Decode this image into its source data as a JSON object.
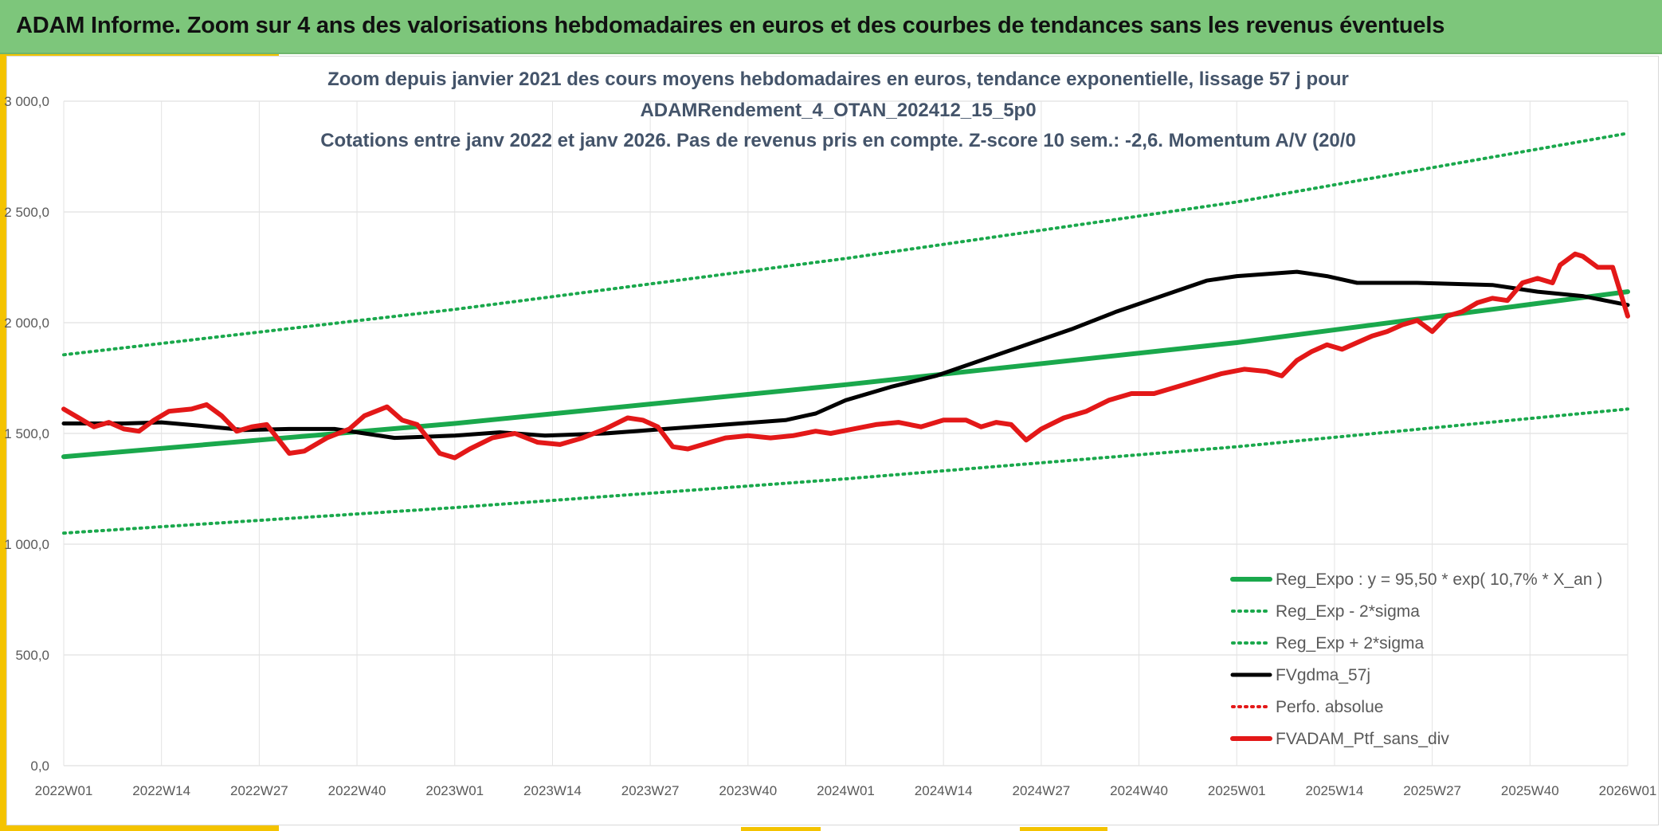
{
  "banner": {
    "title": "ADAM Informe. Zoom sur 4 ans des valorisations hebdomadaires en euros et des courbes de tendances sans les revenus éventuels"
  },
  "colors": {
    "banner": "#7dc67b",
    "accent": "#f4c300",
    "trend": "#1aa84c",
    "sigma": "#1aa84c",
    "moving_average": "#000000",
    "perf_absolue": "#e31818",
    "portfolio": "#e31818"
  },
  "chart_data": {
    "type": "line",
    "title_lines": [
      "Zoom depuis janvier 2021 des cours moyens hebdomadaires en euros, tendance exponentielle, lissage 57 j pour",
      "ADAMRendement_4_OTAN_202412_15_5p0",
      "Cotations entre janv 2022 et janv 2026. Pas de revenus pris en compte. Z-score 10 sem.: -2,6. Momentum A/V (20/0"
    ],
    "x_tick_labels": [
      "2022W01",
      "2022W14",
      "2022W27",
      "2022W40",
      "2023W01",
      "2023W14",
      "2023W27",
      "2023W40",
      "2024W01",
      "2024W14",
      "2024W27",
      "2024W40",
      "2025W01",
      "2025W14",
      "2025W27",
      "2025W40",
      "2026W01"
    ],
    "y_tick_labels": [
      "0,0",
      "500,0",
      "1 000,0",
      "1 500,0",
      "2 000,0",
      "2 500,0",
      "3 000,0"
    ],
    "ylim": [
      0,
      3000
    ],
    "y_ticks": [
      0,
      500,
      1000,
      1500,
      2000,
      2500,
      3000
    ],
    "grid": true,
    "legend_position": "bottom-right",
    "series": [
      {
        "name": "Reg_Expo : y = 95,50 * exp( 10,7% *  X_an )",
        "style": "solid-thick",
        "color": "#1aa84c",
        "values": [
          [
            0,
            1395
          ],
          [
            52,
            1545
          ],
          [
            104,
            1720
          ],
          [
            156,
            1910
          ],
          [
            208,
            2140
          ]
        ]
      },
      {
        "name": "Reg_Exp - 2*sigma",
        "style": "dotted",
        "color": "#1aa84c",
        "values": [
          [
            0,
            1050
          ],
          [
            52,
            1165
          ],
          [
            104,
            1295
          ],
          [
            156,
            1440
          ],
          [
            208,
            1610
          ]
        ]
      },
      {
        "name": "Reg_Exp + 2*sigma",
        "style": "dotted",
        "color": "#1aa84c",
        "values": [
          [
            0,
            1855
          ],
          [
            52,
            2060
          ],
          [
            104,
            2290
          ],
          [
            156,
            2545
          ],
          [
            208,
            2855
          ]
        ]
      },
      {
        "name": "FVgdma_57j",
        "style": "solid",
        "color": "#000000",
        "values": [
          [
            0,
            1545
          ],
          [
            8,
            1545
          ],
          [
            13,
            1550
          ],
          [
            18,
            1535
          ],
          [
            24,
            1515
          ],
          [
            30,
            1520
          ],
          [
            36,
            1520
          ],
          [
            40,
            1500
          ],
          [
            44,
            1480
          ],
          [
            52,
            1490
          ],
          [
            58,
            1505
          ],
          [
            64,
            1490
          ],
          [
            72,
            1500
          ],
          [
            80,
            1520
          ],
          [
            88,
            1540
          ],
          [
            96,
            1560
          ],
          [
            100,
            1590
          ],
          [
            104,
            1650
          ],
          [
            110,
            1710
          ],
          [
            116,
            1760
          ],
          [
            122,
            1830
          ],
          [
            128,
            1900
          ],
          [
            134,
            1970
          ],
          [
            140,
            2050
          ],
          [
            146,
            2120
          ],
          [
            152,
            2190
          ],
          [
            156,
            2210
          ],
          [
            164,
            2230
          ],
          [
            168,
            2210
          ],
          [
            172,
            2180
          ],
          [
            180,
            2180
          ],
          [
            190,
            2170
          ],
          [
            196,
            2140
          ],
          [
            202,
            2120
          ],
          [
            208,
            2080
          ]
        ]
      },
      {
        "name": "Perfo. absolue",
        "style": "dotted",
        "color": "#e31818",
        "values": []
      },
      {
        "name": "FVADAM_Ptf_sans_div",
        "style": "solid-thick",
        "color": "#e31818",
        "values": [
          [
            0,
            1610
          ],
          [
            2,
            1570
          ],
          [
            4,
            1530
          ],
          [
            6,
            1550
          ],
          [
            8,
            1520
          ],
          [
            10,
            1510
          ],
          [
            12,
            1560
          ],
          [
            14,
            1600
          ],
          [
            17,
            1610
          ],
          [
            19,
            1630
          ],
          [
            21,
            1580
          ],
          [
            23,
            1510
          ],
          [
            25,
            1530
          ],
          [
            27,
            1540
          ],
          [
            30,
            1410
          ],
          [
            32,
            1420
          ],
          [
            35,
            1480
          ],
          [
            38,
            1520
          ],
          [
            40,
            1580
          ],
          [
            43,
            1620
          ],
          [
            45,
            1560
          ],
          [
            47,
            1540
          ],
          [
            50,
            1410
          ],
          [
            52,
            1390
          ],
          [
            54,
            1430
          ],
          [
            57,
            1480
          ],
          [
            60,
            1500
          ],
          [
            63,
            1460
          ],
          [
            66,
            1450
          ],
          [
            69,
            1480
          ],
          [
            72,
            1520
          ],
          [
            75,
            1570
          ],
          [
            77,
            1560
          ],
          [
            79,
            1530
          ],
          [
            81,
            1440
          ],
          [
            83,
            1430
          ],
          [
            86,
            1460
          ],
          [
            88,
            1480
          ],
          [
            91,
            1490
          ],
          [
            94,
            1480
          ],
          [
            97,
            1490
          ],
          [
            100,
            1510
          ],
          [
            102,
            1500
          ],
          [
            105,
            1520
          ],
          [
            108,
            1540
          ],
          [
            111,
            1550
          ],
          [
            114,
            1530
          ],
          [
            117,
            1560
          ],
          [
            120,
            1560
          ],
          [
            122,
            1530
          ],
          [
            124,
            1550
          ],
          [
            126,
            1540
          ],
          [
            128,
            1470
          ],
          [
            130,
            1520
          ],
          [
            133,
            1570
          ],
          [
            136,
            1600
          ],
          [
            139,
            1650
          ],
          [
            142,
            1680
          ],
          [
            145,
            1680
          ],
          [
            148,
            1710
          ],
          [
            151,
            1740
          ],
          [
            154,
            1770
          ],
          [
            157,
            1790
          ],
          [
            160,
            1780
          ],
          [
            162,
            1760
          ],
          [
            164,
            1830
          ],
          [
            166,
            1870
          ],
          [
            168,
            1900
          ],
          [
            170,
            1880
          ],
          [
            172,
            1910
          ],
          [
            174,
            1940
          ],
          [
            176,
            1960
          ],
          [
            178,
            1990
          ],
          [
            180,
            2010
          ],
          [
            182,
            1960
          ],
          [
            184,
            2030
          ],
          [
            186,
            2050
          ],
          [
            188,
            2090
          ],
          [
            190,
            2110
          ],
          [
            192,
            2100
          ],
          [
            194,
            2180
          ],
          [
            196,
            2200
          ],
          [
            198,
            2180
          ],
          [
            199,
            2260
          ],
          [
            201,
            2310
          ],
          [
            202,
            2300
          ],
          [
            204,
            2250
          ],
          [
            206,
            2250
          ],
          [
            208,
            2030
          ]
        ]
      }
    ]
  }
}
